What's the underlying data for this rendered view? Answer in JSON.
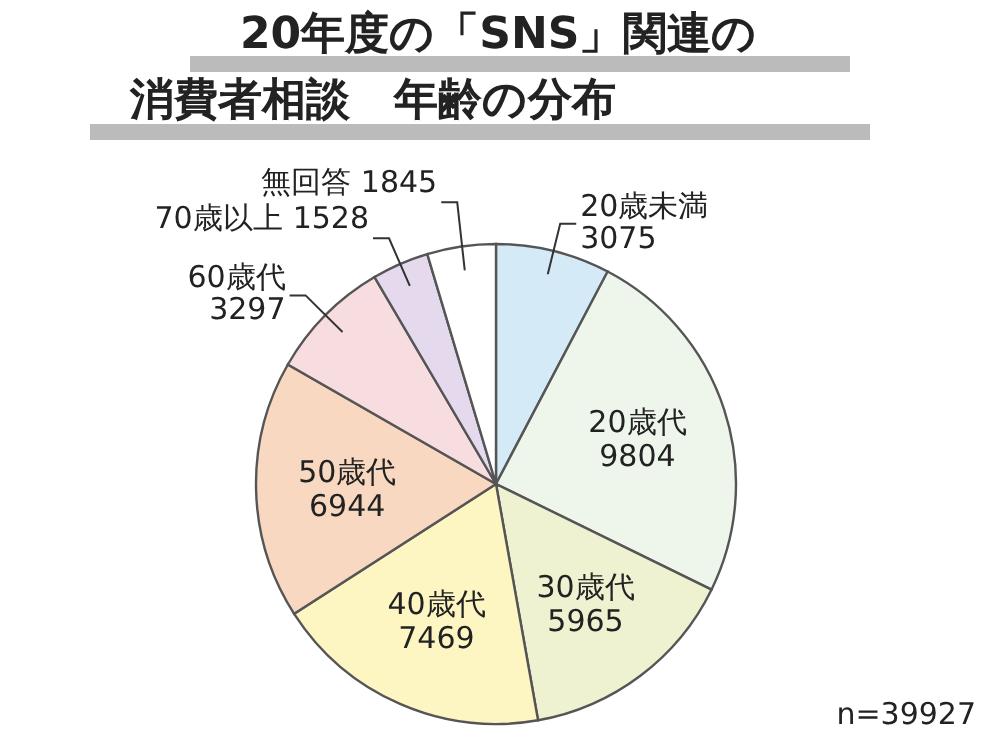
{
  "chart_data": {
    "type": "pie",
    "title": "20年度の「SNS」関連の",
    "subtitle": "消費者相談　年齢の分布",
    "categories": [
      "20歳未満",
      "20歳代",
      "30歳代",
      "40歳代",
      "50歳代",
      "60歳代",
      "70歳以上",
      "無回答"
    ],
    "values": [
      3075,
      9804,
      5965,
      7469,
      6944,
      3297,
      1528,
      1845
    ],
    "colors": [
      "#d4eaf7",
      "#eef6ec",
      "#eef2d0",
      "#fdf5c2",
      "#f8d8c0",
      "#f8dde0",
      "#e4d9ed",
      "#ffffff"
    ],
    "data_labels": true,
    "annotations": [
      "n=39927"
    ]
  }
}
